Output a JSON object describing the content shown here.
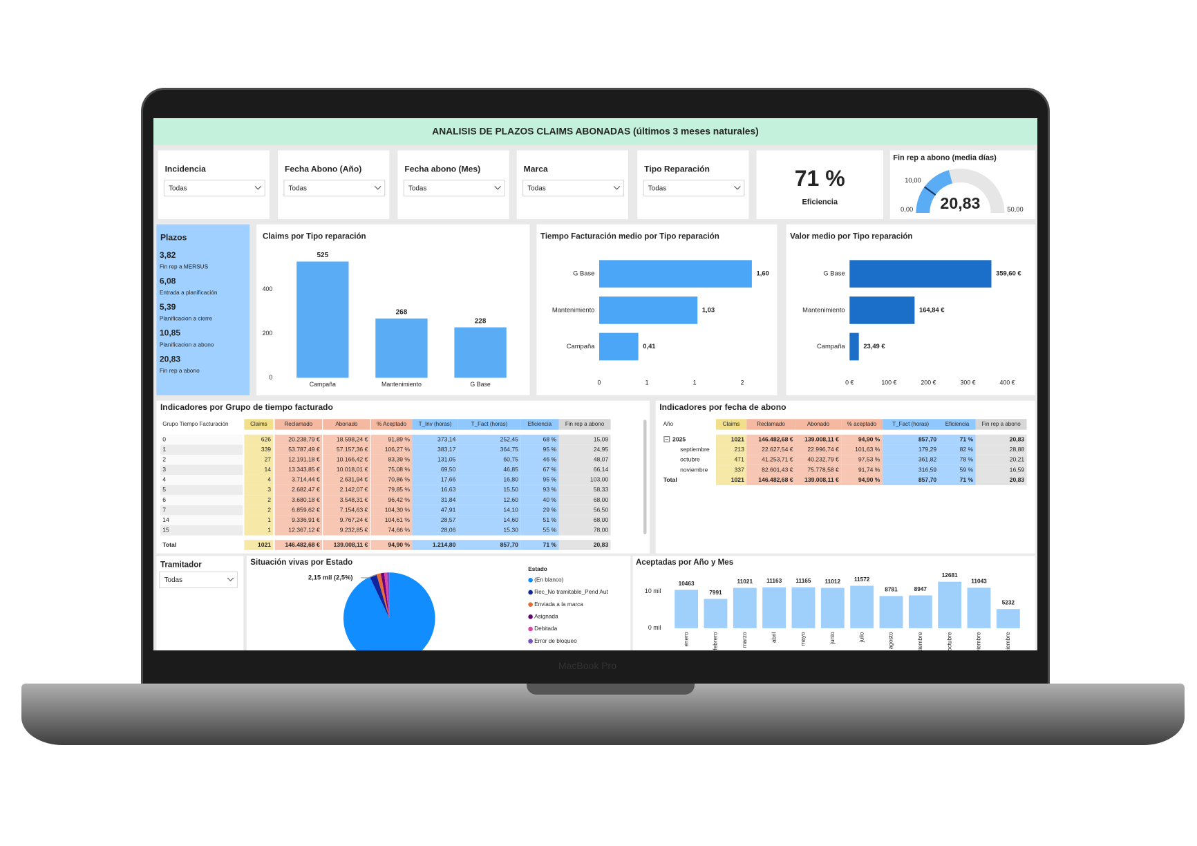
{
  "header": {
    "title": "ANALISIS DE PLAZOS CLAIMS ABONADAS (últimos 3 meses naturales)"
  },
  "filters": [
    {
      "label": "Incidencia",
      "value": "Todas"
    },
    {
      "label": "Fecha Abono (Año)",
      "value": "Todas"
    },
    {
      "label": "Fecha abono (Mes)",
      "value": "Todas"
    },
    {
      "label": "Marca",
      "value": "Todas"
    },
    {
      "label": "Tipo Reparación",
      "value": "Todas"
    }
  ],
  "kpi": {
    "value": "71 %",
    "label": "Eficiencia"
  },
  "gauge": {
    "title": "Fin rep a abono (media días)",
    "value": {
      "value": 20.83,
      "label": "20,83"
    },
    "min": {
      "value": 0,
      "label": "0,00"
    },
    "max": {
      "value": 50,
      "label": "50,00"
    },
    "target": {
      "value": 10,
      "label": "10,00"
    },
    "color": "#5aacf5"
  },
  "plazos": {
    "title": "Plazos",
    "items": [
      {
        "value": "3,82",
        "label": "Fin rep a MERSUS"
      },
      {
        "value": "6,08",
        "label": "Entrada a planificación"
      },
      {
        "value": "5,39",
        "label": "Planificacion a cierre"
      },
      {
        "value": "10,85",
        "label": "Planificacion a abono"
      },
      {
        "value": "20,83",
        "label": "Fin rep a abono"
      }
    ]
  },
  "chart_data": [
    {
      "type": "bar",
      "title": "Claims por Tipo reparación",
      "categories": [
        "Campaña",
        "Mantenimiento",
        "G Base"
      ],
      "values": [
        525,
        268,
        228
      ],
      "color": "#5aacf5",
      "ylim": [
        0,
        560
      ],
      "yticks": [
        0,
        200,
        400
      ]
    },
    {
      "type": "hbar",
      "title": "Tiempo Facturación medio por Tipo reparación",
      "categories": [
        "G Base",
        "Mantenimiento",
        "Campaña"
      ],
      "values": [
        1.6,
        1.03,
        0.41
      ],
      "value_labels": [
        "1,60",
        "1,03",
        "0,41"
      ],
      "color": "#4ca6f7",
      "xlim": [
        0,
        1.8
      ],
      "xticks": [
        0,
        {
          "value": 0.5,
          "label": "1"
        },
        1,
        {
          "value": 1.5,
          "label": "2"
        }
      ]
    },
    {
      "type": "hbar",
      "title": "Valor medio por Tipo reparación",
      "categories": [
        "G Base",
        "Mantenimiento",
        "Campaña"
      ],
      "values": [
        359.6,
        164.84,
        23.49
      ],
      "value_labels": [
        "359,60 €",
        "164,84 €",
        "23,49 €"
      ],
      "color": "#1b6fc8",
      "xlim": [
        0,
        420
      ],
      "xticks": [
        {
          "value": 0,
          "label": "0 €"
        },
        {
          "value": 100,
          "label": "100 €"
        },
        {
          "value": 200,
          "label": "200 €"
        },
        {
          "value": 300,
          "label": "300 €"
        },
        {
          "value": 400,
          "label": "400 €"
        }
      ]
    },
    {
      "type": "pie",
      "title": "Situación vivas por Estado",
      "annotation": "2,15 mil (2,5%)",
      "legend_title": "Estado",
      "categories": [
        "(En blanco)",
        "Rec_No tramitable_Pend Aut",
        "Enviada a la marca",
        "Asignada",
        "Debitada",
        "Error de bloqueo"
      ],
      "values": [
        93,
        2.5,
        1.5,
        1.2,
        1,
        0.8
      ],
      "colors": [
        "#118dff",
        "#12239e",
        "#e66c37",
        "#6b007b",
        "#e044a7",
        "#744ec2"
      ]
    },
    {
      "type": "bar",
      "title": "Aceptadas por Año y Mes",
      "categories": [
        "enero",
        "febrero",
        "marzo",
        "abril",
        "mayo",
        "junio",
        "julio",
        "agosto",
        "septiembre",
        "octubre",
        "noviembre",
        "diciembre"
      ],
      "values": [
        10463,
        7991,
        11021,
        11163,
        11165,
        11012,
        11572,
        8781,
        8947,
        12681,
        11043,
        5232
      ],
      "color": "#9fd0fb",
      "ylim": [
        0,
        13000
      ],
      "yticks": [
        {
          "value": 0,
          "label": "0 mil"
        },
        {
          "value": 10000,
          "label": "10 mil"
        }
      ]
    }
  ],
  "table_grupo": {
    "title": "Indicadores por Grupo de tiempo facturado",
    "columns": [
      "Grupo Tiempo Facturación",
      "Claims",
      "Reclamado",
      "Abonado",
      "% Aceptado",
      "T_Inv (horas)",
      "T_Fact (horas)",
      "Eficiencia",
      "Fin rep a abono"
    ],
    "rows": [
      [
        "0",
        "626",
        "20.238,79 €",
        "18.598,24 €",
        "91,89 %",
        "373,14",
        "252,45",
        "68 %",
        "15,09"
      ],
      [
        "1",
        "339",
        "53.787,49 €",
        "57.157,36 €",
        "106,27 %",
        "383,17",
        "364,75",
        "95 %",
        "24,95"
      ],
      [
        "2",
        "27",
        "12.191,18 €",
        "10.166,42 €",
        "83,39 %",
        "131,05",
        "60,75",
        "46 %",
        "48,07"
      ],
      [
        "3",
        "14",
        "13.343,85 €",
        "10.018,01 €",
        "75,08 %",
        "69,50",
        "46,85",
        "67 %",
        "66,14"
      ],
      [
        "4",
        "4",
        "3.714,44 €",
        "2.631,94 €",
        "70,86 %",
        "17,66",
        "16,80",
        "95 %",
        "103,00"
      ],
      [
        "5",
        "3",
        "2.682,47 €",
        "2.142,07 €",
        "79,85 %",
        "16,63",
        "15,50",
        "93 %",
        "58,33"
      ],
      [
        "6",
        "2",
        "3.680,18 €",
        "3.548,31 €",
        "96,42 %",
        "31,84",
        "12,60",
        "40 %",
        "68,00"
      ],
      [
        "7",
        "2",
        "6.859,62 €",
        "7.154,63 €",
        "104,30 %",
        "47,91",
        "14,10",
        "29 %",
        "56,50"
      ],
      [
        "14",
        "1",
        "9.336,91 €",
        "9.767,24 €",
        "104,61 %",
        "28,57",
        "14,60",
        "51 %",
        "68,00"
      ],
      [
        "15",
        "1",
        "12.367,12 €",
        "9.232,85 €",
        "74,66 %",
        "28,06",
        "15,30",
        "55 %",
        "78,00"
      ]
    ],
    "total": [
      "Total",
      "1021",
      "146.482,68 €",
      "139.008,11 €",
      "94,90 %",
      "1.214,80",
      "857,70",
      "71 %",
      "20,83"
    ]
  },
  "table_fecha": {
    "title": "Indicadores por fecha de abono",
    "columns": [
      "Año",
      "Claims",
      "Reclamado",
      "Abonado",
      "% aceptado",
      "T_Fact (horas)",
      "Eficiencia",
      "Fin rep a abono"
    ],
    "rows": [
      [
        "2025",
        "1021",
        "146.482,68 €",
        "139.008,11 €",
        "94,90 %",
        "857,70",
        "71 %",
        "20,83"
      ],
      [
        "septiembre",
        "213",
        "22.627,54 €",
        "22.996,74 €",
        "101,63 %",
        "179,29",
        "82 %",
        "28,88"
      ],
      [
        "octubre",
        "471",
        "41.253,71 €",
        "40.232,79 €",
        "97,53 %",
        "361,82",
        "78 %",
        "20,21"
      ],
      [
        "noviembre",
        "337",
        "82.601,43 €",
        "75.778,58 €",
        "91,74 %",
        "316,59",
        "59 %",
        "16,59"
      ]
    ],
    "total": [
      "Total",
      "1021",
      "146.482,68 €",
      "139.008,11 €",
      "94,90 %",
      "857,70",
      "71 %",
      "20,83"
    ]
  },
  "tramitador": {
    "label": "Tramitador",
    "value": "Todas"
  },
  "bezel_label": "MacBook Pro"
}
